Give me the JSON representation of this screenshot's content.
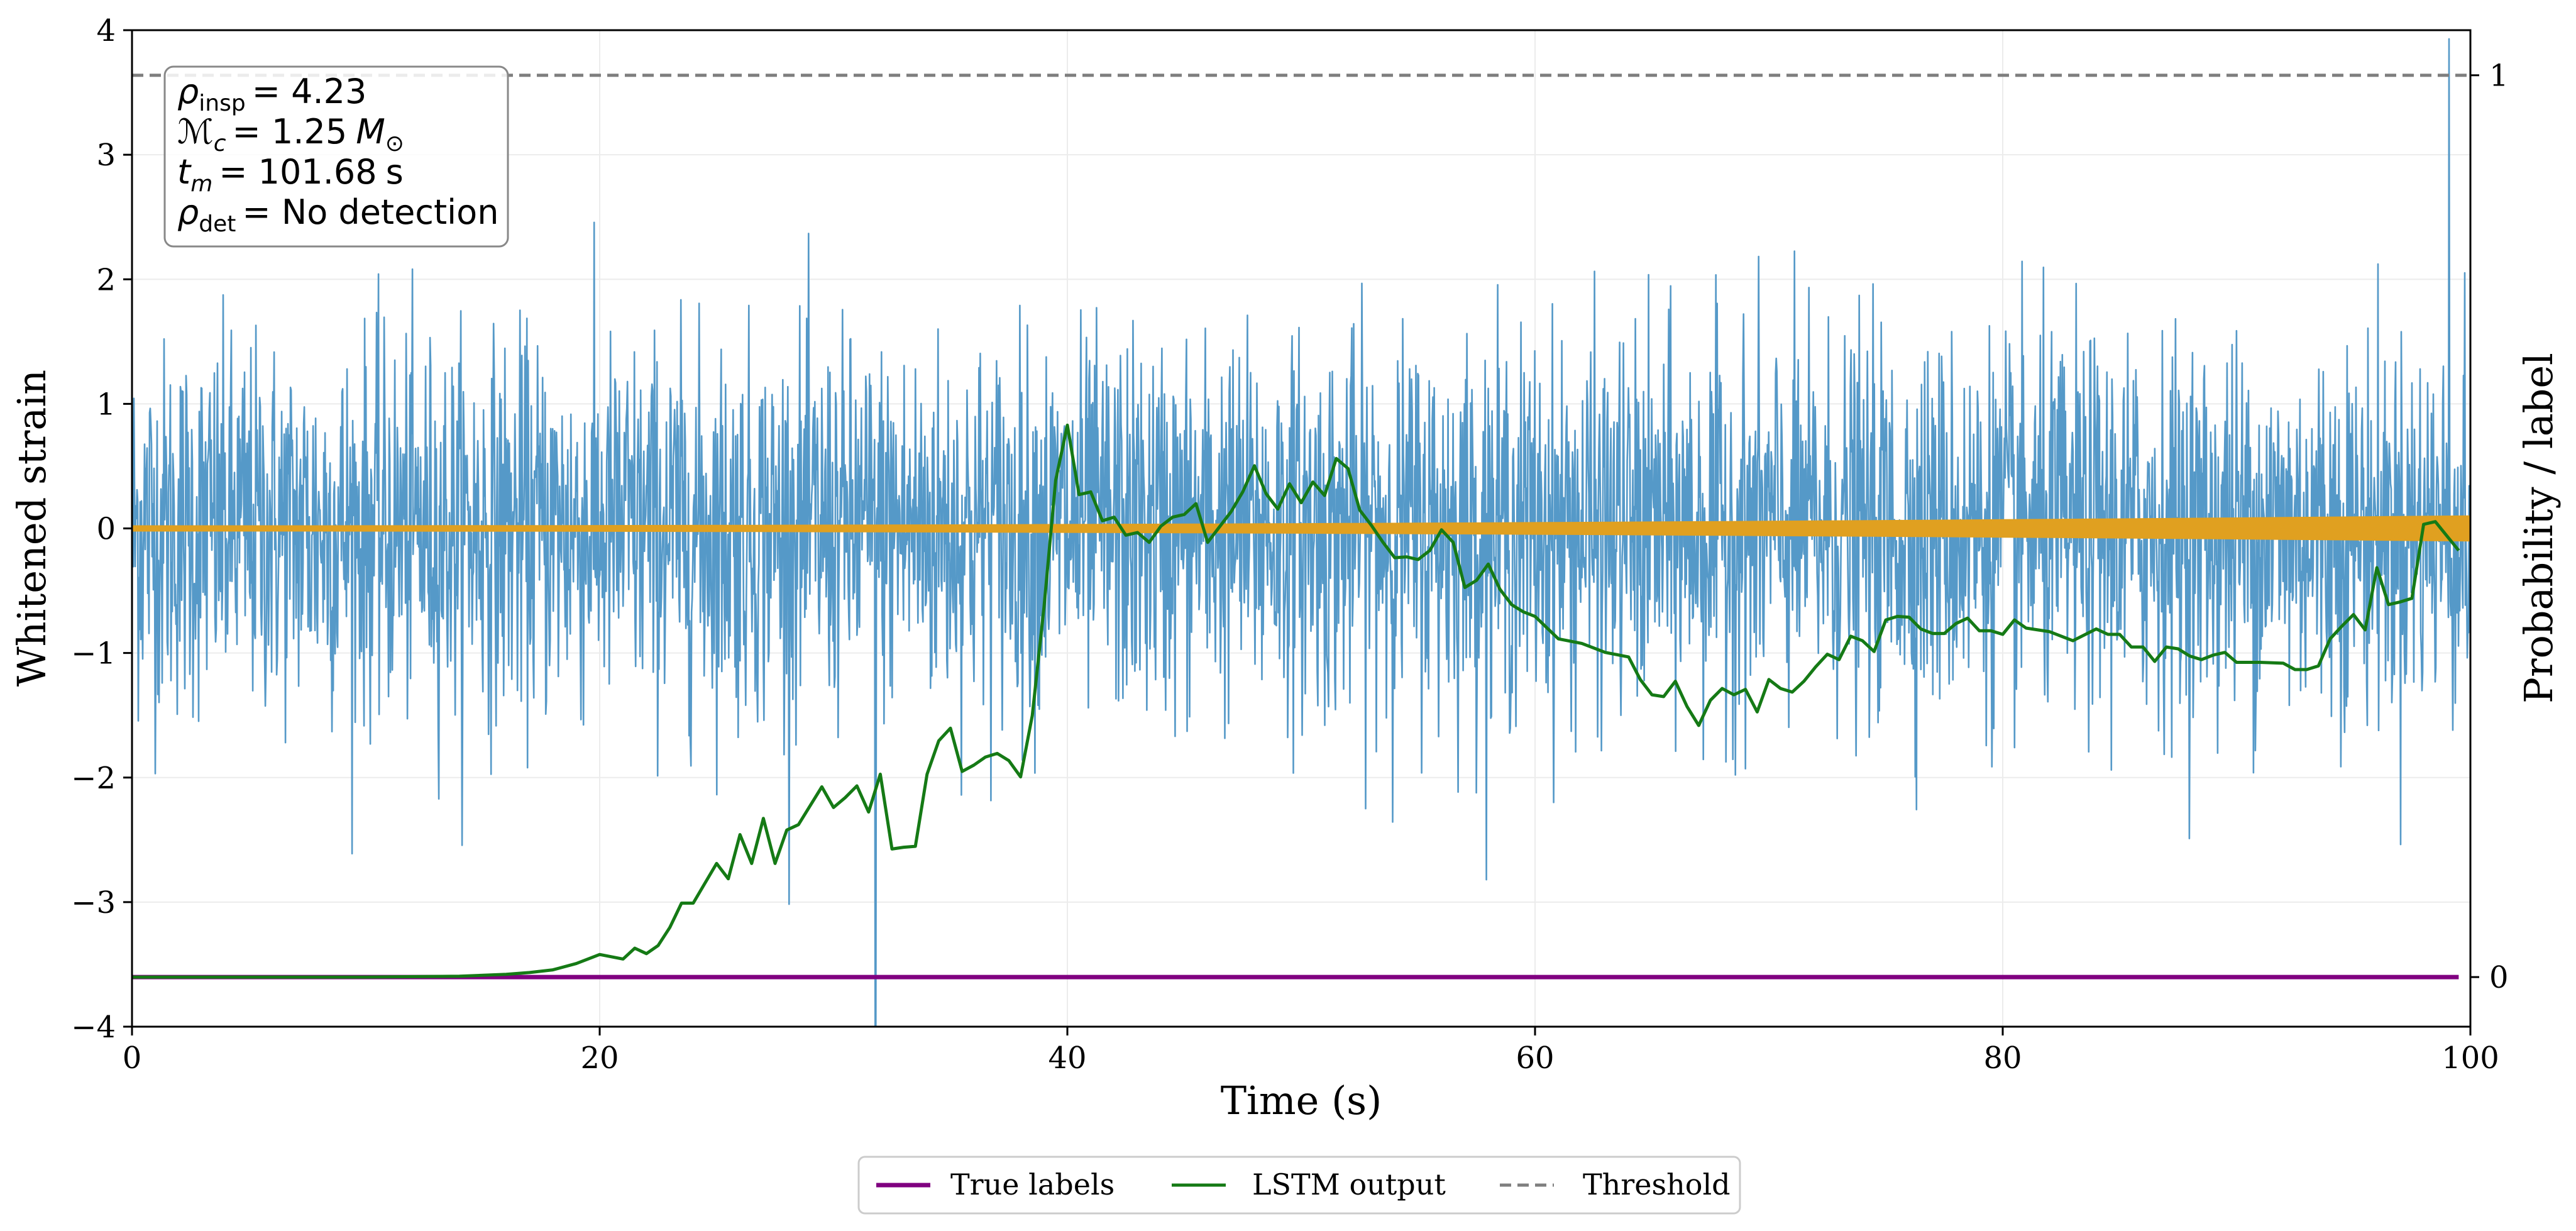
{
  "chart_data": {
    "type": "line",
    "title": "",
    "xlabel": "Time (s)",
    "ylabel": "Whitened strain",
    "ylabel_right": "Probability / label",
    "xlim": [
      0,
      100
    ],
    "ylim": [
      -4,
      4
    ],
    "ylim_right": [
      -0.055,
      1.05
    ],
    "xticks": [
      "0",
      "20",
      "40",
      "60",
      "80",
      "100"
    ],
    "yticks": [
      "−4",
      "−3",
      "−2",
      "−1",
      "0",
      "1",
      "2",
      "3",
      "4"
    ],
    "yticks_right": [
      "0",
      "1"
    ],
    "grid": true,
    "annotation": {
      "rho_insp": "= 4.23",
      "chirp_mass": "= 1.25",
      "t_merge": "= 101.68",
      "t_unit": "s",
      "rho_det": "= No detection"
    },
    "strain": {
      "name": "Whitened strain",
      "color": "#5599c8",
      "sigma": 0.75,
      "max_peak": 3.93,
      "spike_at_x": 31.8,
      "spike_value": -4.0
    },
    "waveform": {
      "name": "Injected signal",
      "color": "#e0a020",
      "amp_start": 0.02,
      "amp_end": 0.1
    },
    "series": [
      {
        "name": "True labels",
        "color": "#800080",
        "x": [
          0,
          99.5
        ],
        "values": [
          0,
          0
        ]
      },
      {
        "name": "LSTM output",
        "color": "#157a15",
        "x": [
          0,
          5,
          10,
          14,
          16,
          17,
          18,
          19,
          20,
          21,
          21.5,
          22,
          22.5,
          23,
          23.5,
          24,
          24.5,
          25,
          25.5,
          26,
          26.5,
          27,
          27.5,
          28,
          28.5,
          29,
          29.5,
          30,
          30.5,
          31,
          31.5,
          32,
          32.5,
          33,
          33.5,
          34,
          34.5,
          35,
          35.5,
          36,
          36.5,
          37,
          37.5,
          38,
          38.5,
          39,
          39.5,
          40,
          40.5,
          41,
          41.5,
          42,
          42.5,
          43,
          43.5,
          44,
          44.5,
          45,
          45.5,
          46,
          46.5,
          47,
          47.5,
          48,
          48.5,
          49,
          49.5,
          50,
          50.5,
          51,
          51.5,
          52,
          52.5,
          53,
          53.5,
          54,
          54.5,
          55,
          55.5,
          56,
          56.5,
          57,
          57.5,
          58,
          58.5,
          59,
          59.5,
          60,
          61,
          62,
          63,
          64,
          64.5,
          65,
          65.5,
          66,
          66.5,
          67,
          67.5,
          68,
          68.5,
          69,
          69.5,
          70,
          70.5,
          71,
          71.5,
          72,
          72.5,
          73,
          73.5,
          74,
          74.5,
          75,
          75.5,
          76,
          76.5,
          77,
          77.5,
          78,
          78.5,
          79,
          79.5,
          80,
          80.5,
          81,
          81.5,
          82,
          83,
          84,
          84.5,
          85,
          85.5,
          86,
          86.5,
          87,
          87.5,
          88,
          88.5,
          89,
          89.5,
          90,
          91,
          92,
          92.5,
          93,
          93.5,
          94,
          94.5,
          95,
          95.5,
          96,
          96.5,
          97,
          97.5,
          98,
          98.5,
          99,
          99.5
        ],
        "values": [
          0,
          0,
          0,
          0.001,
          0.003,
          0.005,
          0.008,
          0.015,
          0.025,
          0.02,
          0.032,
          0.026,
          0.035,
          0.055,
          0.082,
          0.082,
          0.104,
          0.126,
          0.109,
          0.158,
          0.126,
          0.176,
          0.126,
          0.163,
          0.169,
          0.19,
          0.211,
          0.188,
          0.199,
          0.212,
          0.183,
          0.225,
          0.142,
          0.144,
          0.145,
          0.225,
          0.262,
          0.276,
          0.228,
          0.235,
          0.244,
          0.248,
          0.24,
          0.222,
          0.29,
          0.41,
          0.551,
          0.612,
          0.535,
          0.538,
          0.506,
          0.51,
          0.49,
          0.493,
          0.482,
          0.5,
          0.51,
          0.513,
          0.525,
          0.482,
          0.499,
          0.516,
          0.538,
          0.567,
          0.536,
          0.519,
          0.547,
          0.526,
          0.549,
          0.534,
          0.575,
          0.564,
          0.518,
          0.501,
          0.482,
          0.465,
          0.466,
          0.463,
          0.473,
          0.496,
          0.482,
          0.432,
          0.44,
          0.458,
          0.43,
          0.413,
          0.405,
          0.4,
          0.375,
          0.37,
          0.36,
          0.355,
          0.33,
          0.313,
          0.311,
          0.328,
          0.3,
          0.279,
          0.307,
          0.32,
          0.313,
          0.319,
          0.294,
          0.33,
          0.32,
          0.316,
          0.328,
          0.344,
          0.358,
          0.352,
          0.378,
          0.373,
          0.361,
          0.396,
          0.4,
          0.399,
          0.386,
          0.381,
          0.381,
          0.392,
          0.398,
          0.384,
          0.384,
          0.38,
          0.396,
          0.387,
          0.385,
          0.383,
          0.373,
          0.386,
          0.38,
          0.38,
          0.366,
          0.366,
          0.35,
          0.366,
          0.364,
          0.356,
          0.352,
          0.357,
          0.36,
          0.349,
          0.349,
          0.348,
          0.341,
          0.341,
          0.345,
          0.375,
          0.389,
          0.402,
          0.385,
          0.454,
          0.413,
          0.416,
          0.42,
          0.502,
          0.505,
          0.489,
          0.473
        ]
      },
      {
        "name": "Threshold",
        "color": "#7f7f7f",
        "x": [
          0,
          100
        ],
        "values": [
          1,
          1
        ]
      }
    ],
    "legend": {
      "location": "bottom-center, outside the axes",
      "entries": [
        "True labels",
        "LSTM output",
        "Threshold"
      ]
    }
  }
}
